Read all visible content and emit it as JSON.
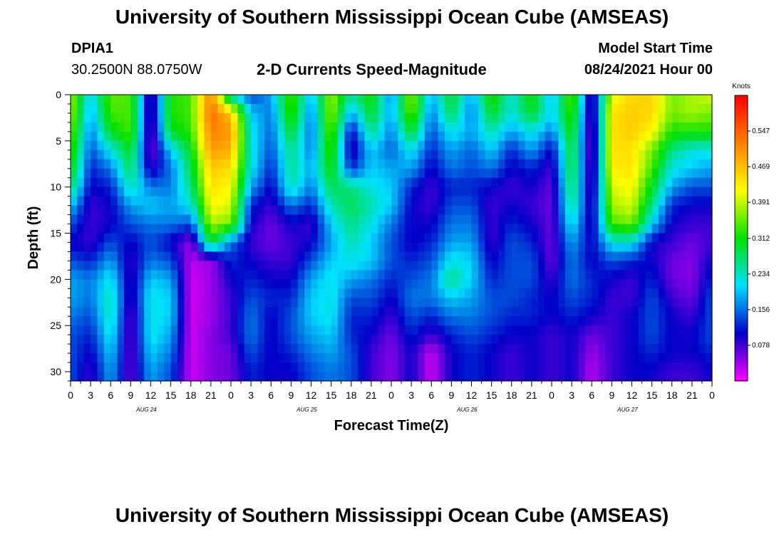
{
  "header": {
    "title": "University of Southern Mississippi Ocean Cube (AMSEAS)",
    "station": "DPIA1",
    "coords": "30.2500N  88.0750W",
    "plot_title": "2-D Currents Speed-Magnitude",
    "model_start_label": "Model Start Time",
    "model_start_value": "08/24/2021 Hour 00"
  },
  "footer": {
    "title": "University of Southern Mississippi Ocean Cube (AMSEAS)"
  },
  "chart_data": {
    "type": "heatmap",
    "xlabel": "Forecast Time(Z)",
    "ylabel": "Depth (ft)",
    "x_tick_labels": [
      "0",
      "3",
      "6",
      "9",
      "12",
      "15",
      "18",
      "21",
      "0",
      "3",
      "6",
      "9",
      "12",
      "15",
      "18",
      "21",
      "0",
      "3",
      "6",
      "9",
      "12",
      "15",
      "18",
      "21",
      "0",
      "3",
      "6",
      "9",
      "12",
      "15",
      "18",
      "21",
      "0"
    ],
    "date_labels": [
      {
        "label": "AUG 24",
        "hour": 12
      },
      {
        "label": "AUG 25",
        "hour": 36
      },
      {
        "label": "AUG 26",
        "hour": 60
      },
      {
        "label": "AUG 27",
        "hour": 84
      }
    ],
    "xlim": [
      0,
      96
    ],
    "ylim": [
      0,
      31
    ],
    "y_ticks": [
      0,
      5,
      10,
      15,
      20,
      25,
      30
    ],
    "colorbar": {
      "unit_label": "Knots",
      "tick_labels": [
        "0.547",
        "0.469",
        "0.391",
        "0.312",
        "0.234",
        "0.156",
        "0.078"
      ],
      "range": [
        0,
        0.625
      ],
      "colors": [
        "#ff00ff",
        "#0000c8",
        "#00e0ff",
        "#00e000",
        "#ffff00",
        "#ff8000",
        "#ff0000"
      ]
    },
    "depths_ft": [
      0,
      2,
      4,
      6,
      8,
      10,
      12,
      14,
      16,
      18,
      20,
      22,
      24,
      26,
      28,
      30
    ],
    "hours": [
      0,
      3,
      6,
      9,
      12,
      15,
      18,
      21,
      24,
      27,
      30,
      33,
      36,
      39,
      42,
      45,
      48,
      51,
      54,
      57,
      60,
      63,
      66,
      69,
      72,
      75,
      78,
      81,
      84,
      87,
      90,
      93,
      96
    ],
    "speed_knots": [
      [
        0.38,
        0.2,
        0.35,
        0.34,
        0.06,
        0.32,
        0.34,
        0.52,
        0.22,
        0.13,
        0.18,
        0.35,
        0.18,
        0.38,
        0.25,
        0.32,
        0.16,
        0.38,
        0.18,
        0.3,
        0.18,
        0.33,
        0.22,
        0.32,
        0.18,
        0.36,
        0.06,
        0.4,
        0.45,
        0.45,
        0.36,
        0.38,
        0.4
      ],
      [
        0.38,
        0.18,
        0.34,
        0.34,
        0.06,
        0.32,
        0.34,
        0.54,
        0.46,
        0.2,
        0.16,
        0.34,
        0.16,
        0.38,
        0.18,
        0.3,
        0.18,
        0.36,
        0.16,
        0.28,
        0.16,
        0.3,
        0.22,
        0.3,
        0.2,
        0.34,
        0.05,
        0.44,
        0.46,
        0.45,
        0.36,
        0.38,
        0.36
      ],
      [
        0.36,
        0.16,
        0.3,
        0.34,
        0.05,
        0.3,
        0.33,
        0.52,
        0.5,
        0.22,
        0.15,
        0.3,
        0.15,
        0.36,
        0.1,
        0.26,
        0.16,
        0.3,
        0.14,
        0.22,
        0.18,
        0.24,
        0.18,
        0.22,
        0.16,
        0.32,
        0.04,
        0.44,
        0.46,
        0.42,
        0.32,
        0.32,
        0.32
      ],
      [
        0.34,
        0.14,
        0.22,
        0.3,
        0.05,
        0.2,
        0.3,
        0.5,
        0.48,
        0.22,
        0.14,
        0.26,
        0.16,
        0.34,
        0.08,
        0.2,
        0.15,
        0.22,
        0.12,
        0.18,
        0.15,
        0.2,
        0.12,
        0.18,
        0.1,
        0.3,
        0.04,
        0.44,
        0.44,
        0.36,
        0.26,
        0.22,
        0.22
      ],
      [
        0.32,
        0.12,
        0.16,
        0.28,
        0.08,
        0.16,
        0.28,
        0.46,
        0.44,
        0.22,
        0.12,
        0.26,
        0.18,
        0.32,
        0.12,
        0.2,
        0.18,
        0.18,
        0.1,
        0.16,
        0.14,
        0.16,
        0.1,
        0.12,
        0.08,
        0.3,
        0.05,
        0.43,
        0.44,
        0.34,
        0.22,
        0.2,
        0.18
      ],
      [
        0.28,
        0.1,
        0.12,
        0.24,
        0.16,
        0.16,
        0.26,
        0.44,
        0.42,
        0.18,
        0.1,
        0.24,
        0.16,
        0.28,
        0.26,
        0.22,
        0.2,
        0.12,
        0.08,
        0.12,
        0.12,
        0.1,
        0.08,
        0.1,
        0.06,
        0.28,
        0.06,
        0.4,
        0.42,
        0.3,
        0.18,
        0.14,
        0.14
      ],
      [
        0.2,
        0.08,
        0.1,
        0.18,
        0.2,
        0.18,
        0.22,
        0.42,
        0.4,
        0.12,
        0.08,
        0.16,
        0.12,
        0.24,
        0.28,
        0.24,
        0.2,
        0.1,
        0.08,
        0.14,
        0.14,
        0.08,
        0.1,
        0.08,
        0.06,
        0.26,
        0.08,
        0.38,
        0.4,
        0.26,
        0.12,
        0.1,
        0.1
      ],
      [
        0.14,
        0.08,
        0.1,
        0.14,
        0.16,
        0.16,
        0.14,
        0.38,
        0.36,
        0.1,
        0.06,
        0.1,
        0.08,
        0.2,
        0.26,
        0.22,
        0.16,
        0.1,
        0.1,
        0.16,
        0.16,
        0.08,
        0.12,
        0.1,
        0.06,
        0.22,
        0.08,
        0.34,
        0.36,
        0.2,
        0.1,
        0.08,
        0.08
      ],
      [
        0.1,
        0.08,
        0.14,
        0.1,
        0.14,
        0.1,
        0.04,
        0.3,
        0.16,
        0.08,
        0.06,
        0.08,
        0.1,
        0.18,
        0.24,
        0.2,
        0.14,
        0.1,
        0.12,
        0.18,
        0.18,
        0.08,
        0.14,
        0.12,
        0.06,
        0.18,
        0.1,
        0.22,
        0.22,
        0.1,
        0.08,
        0.06,
        0.08
      ],
      [
        0.14,
        0.12,
        0.18,
        0.08,
        0.16,
        0.14,
        0.03,
        0.04,
        0.12,
        0.1,
        0.08,
        0.08,
        0.14,
        0.2,
        0.22,
        0.2,
        0.14,
        0.12,
        0.14,
        0.22,
        0.2,
        0.1,
        0.14,
        0.14,
        0.06,
        0.16,
        0.1,
        0.14,
        0.12,
        0.1,
        0.06,
        0.05,
        0.1
      ],
      [
        0.18,
        0.16,
        0.22,
        0.08,
        0.2,
        0.18,
        0.02,
        0.04,
        0.1,
        0.12,
        0.1,
        0.1,
        0.18,
        0.22,
        0.18,
        0.16,
        0.12,
        0.14,
        0.16,
        0.26,
        0.2,
        0.12,
        0.14,
        0.14,
        0.08,
        0.16,
        0.12,
        0.1,
        0.08,
        0.12,
        0.06,
        0.05,
        0.12
      ],
      [
        0.18,
        0.16,
        0.24,
        0.08,
        0.22,
        0.2,
        0.02,
        0.04,
        0.08,
        0.14,
        0.12,
        0.12,
        0.2,
        0.22,
        0.14,
        0.14,
        0.1,
        0.16,
        0.16,
        0.2,
        0.18,
        0.14,
        0.14,
        0.12,
        0.1,
        0.14,
        0.12,
        0.08,
        0.08,
        0.14,
        0.08,
        0.06,
        0.14
      ],
      [
        0.16,
        0.14,
        0.24,
        0.06,
        0.22,
        0.2,
        0.02,
        0.04,
        0.08,
        0.16,
        0.1,
        0.14,
        0.2,
        0.22,
        0.12,
        0.12,
        0.08,
        0.14,
        0.12,
        0.16,
        0.16,
        0.14,
        0.12,
        0.12,
        0.1,
        0.12,
        0.1,
        0.08,
        0.1,
        0.14,
        0.1,
        0.08,
        0.14
      ],
      [
        0.14,
        0.12,
        0.22,
        0.06,
        0.22,
        0.18,
        0.02,
        0.05,
        0.08,
        0.16,
        0.1,
        0.14,
        0.18,
        0.2,
        0.12,
        0.1,
        0.06,
        0.12,
        0.08,
        0.12,
        0.14,
        0.12,
        0.1,
        0.1,
        0.08,
        0.1,
        0.06,
        0.08,
        0.1,
        0.14,
        0.1,
        0.1,
        0.14
      ],
      [
        0.14,
        0.1,
        0.2,
        0.06,
        0.2,
        0.16,
        0.02,
        0.05,
        0.06,
        0.14,
        0.1,
        0.12,
        0.16,
        0.18,
        0.14,
        0.08,
        0.05,
        0.1,
        0.02,
        0.1,
        0.12,
        0.1,
        0.08,
        0.1,
        0.08,
        0.1,
        0.04,
        0.08,
        0.1,
        0.12,
        0.1,
        0.1,
        0.12
      ],
      [
        0.14,
        0.08,
        0.18,
        0.06,
        0.18,
        0.14,
        0.02,
        0.05,
        0.06,
        0.12,
        0.1,
        0.1,
        0.14,
        0.16,
        0.14,
        0.08,
        0.05,
        0.1,
        0.02,
        0.1,
        0.12,
        0.1,
        0.08,
        0.1,
        0.08,
        0.1,
        0.03,
        0.08,
        0.1,
        0.1,
        0.08,
        0.08,
        0.1
      ]
    ]
  }
}
